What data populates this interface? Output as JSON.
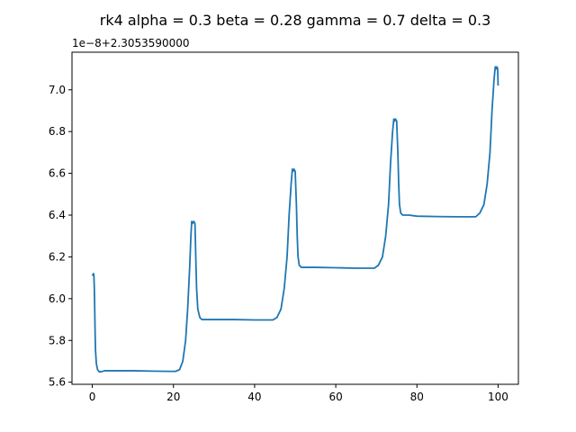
{
  "chart_data": {
    "type": "line",
    "title": "rk4 alpha = 0.3 beta = 0.28 gamma = 0.7 delta = 0.3",
    "y_offset_label": "1e−8+2.3053590000",
    "xlabel": "",
    "ylabel": "",
    "xlim": [
      -5,
      105
    ],
    "ylim": [
      5.59,
      7.18
    ],
    "x_ticks": [
      0,
      20,
      40,
      60,
      80,
      100
    ],
    "x_tick_labels": [
      "0",
      "20",
      "40",
      "60",
      "80",
      "100"
    ],
    "y_ticks": [
      5.6,
      5.8,
      6.0,
      6.2,
      6.4,
      6.6,
      6.8,
      7.0
    ],
    "y_tick_labels": [
      "5.6",
      "5.8",
      "6.0",
      "6.2",
      "6.4",
      "6.6",
      "6.8",
      "7.0"
    ],
    "grid": false,
    "color": "#1f77b4",
    "series": [
      {
        "x": [
          0,
          0.3,
          0.4,
          0.5,
          0.6,
          0.7,
          0.8,
          1.0,
          1.3,
          1.7,
          2.2,
          3,
          5,
          10,
          15,
          19,
          20.5,
          21.5,
          22.3,
          23,
          23.5,
          24,
          24.3,
          24.5,
          24.7,
          25,
          25.3,
          25.5,
          25.7,
          26,
          26.5,
          27,
          28,
          30,
          35,
          40,
          44.5,
          45.5,
          46.5,
          47.3,
          48,
          48.5,
          49,
          49.3,
          49.5,
          49.7,
          50,
          50.3,
          50.5,
          50.7,
          51,
          51.5,
          52,
          53,
          55,
          60,
          65,
          69.5,
          70.5,
          71.5,
          72.3,
          73,
          73.5,
          74,
          74.3,
          74.5,
          74.7,
          75,
          75.3,
          75.5,
          75.7,
          76,
          76.5,
          77,
          78,
          80,
          85,
          90,
          94.5,
          95.5,
          96.5,
          97.3,
          98,
          98.5,
          99,
          99.3,
          99.5,
          99.7,
          99.9,
          100
        ],
        "y": [
          6.11,
          6.12,
          6.11,
          6.05,
          5.95,
          5.83,
          5.75,
          5.69,
          5.66,
          5.65,
          5.65,
          5.655,
          5.655,
          5.655,
          5.653,
          5.652,
          5.652,
          5.66,
          5.7,
          5.8,
          5.95,
          6.15,
          6.3,
          6.37,
          6.36,
          6.37,
          6.36,
          6.2,
          6.05,
          5.95,
          5.91,
          5.9,
          5.9,
          5.9,
          5.9,
          5.898,
          5.898,
          5.91,
          5.95,
          6.05,
          6.2,
          6.4,
          6.55,
          6.62,
          6.61,
          6.62,
          6.61,
          6.45,
          6.3,
          6.2,
          6.16,
          6.15,
          6.15,
          6.15,
          6.15,
          6.148,
          6.146,
          6.146,
          6.16,
          6.2,
          6.3,
          6.45,
          6.65,
          6.8,
          6.86,
          6.85,
          6.86,
          6.85,
          6.7,
          6.55,
          6.45,
          6.41,
          6.4,
          6.4,
          6.4,
          6.395,
          6.393,
          6.392,
          6.392,
          6.41,
          6.45,
          6.55,
          6.7,
          6.9,
          7.05,
          7.11,
          7.1,
          7.11,
          7.1,
          7.02
        ]
      }
    ]
  }
}
